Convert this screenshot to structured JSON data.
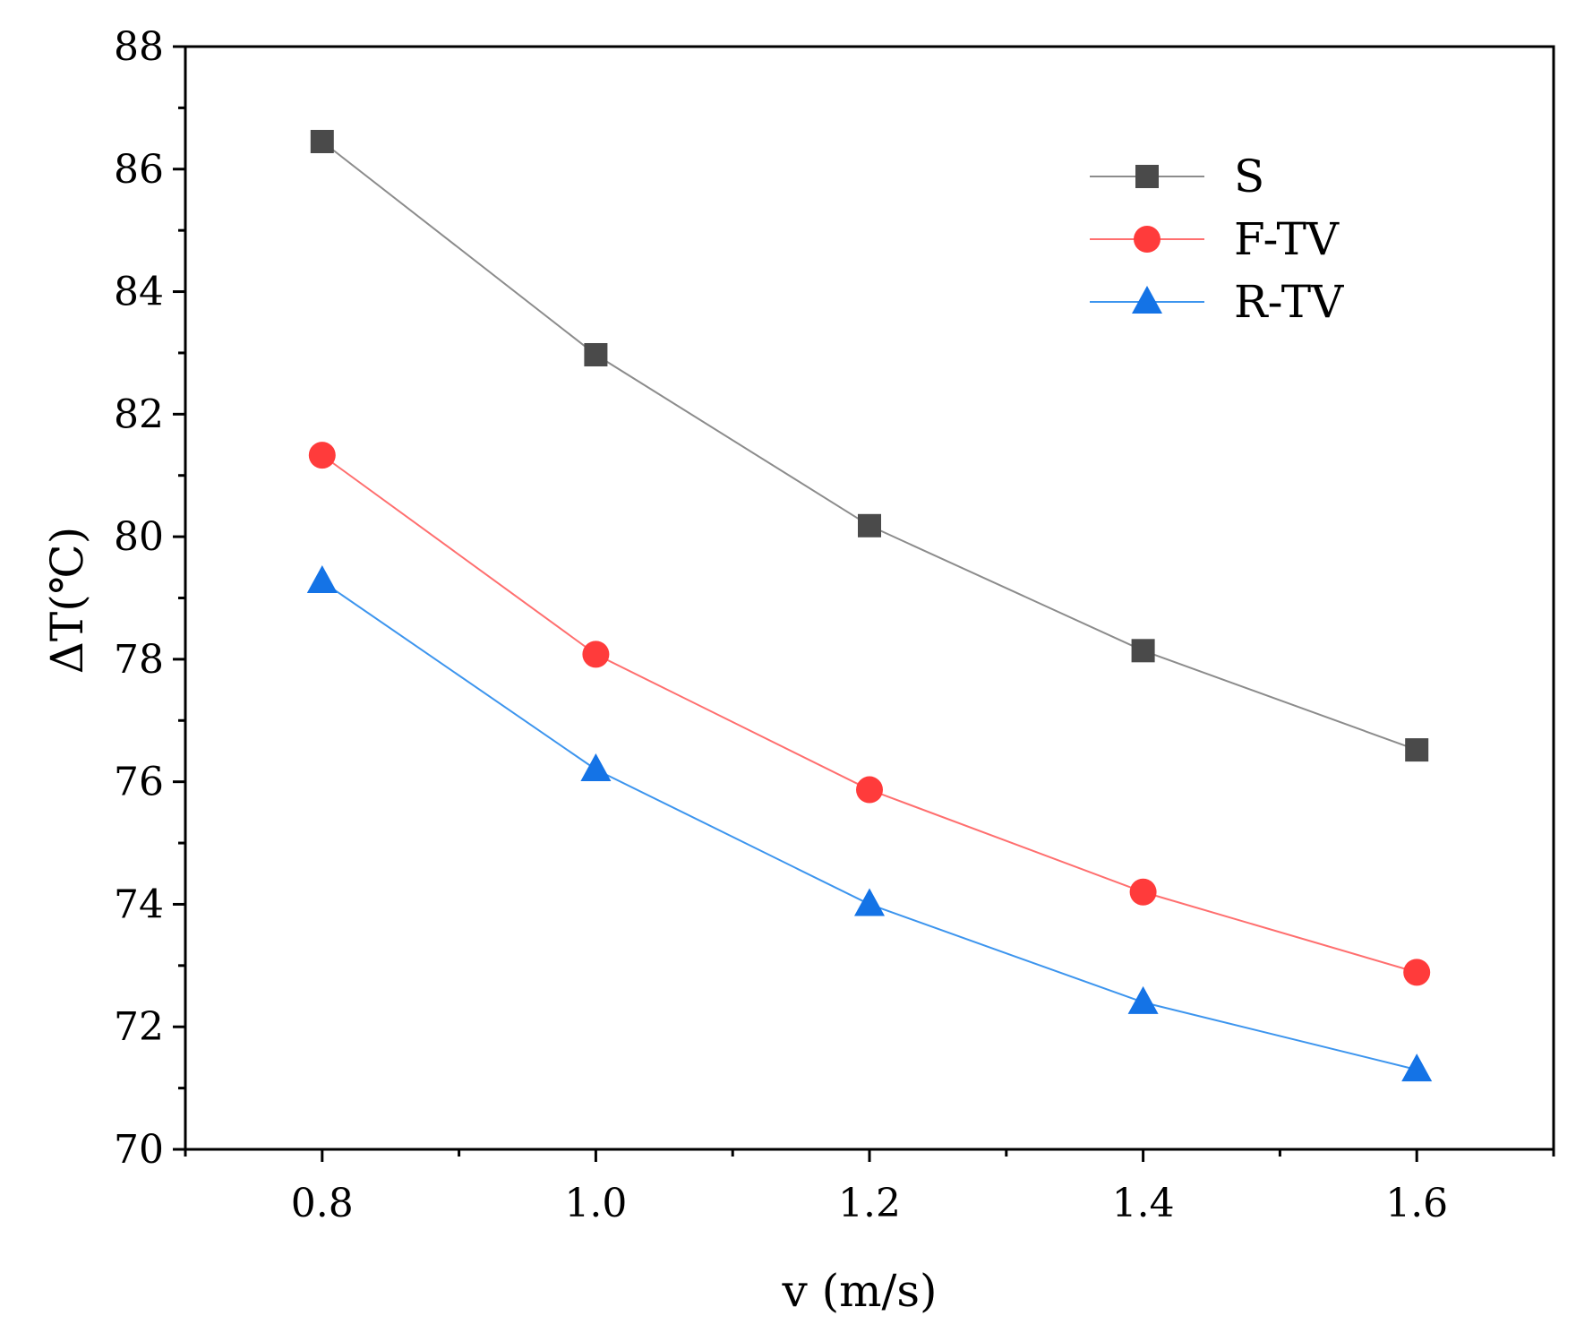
{
  "chart_data": {
    "type": "line",
    "title": "",
    "xlabel": "v (m/s)",
    "ylabel": "ΔT(℃)",
    "x": [
      0.8,
      1.0,
      1.2,
      1.4,
      1.6
    ],
    "xlim": [
      0.7,
      1.7
    ],
    "ylim": [
      70,
      88
    ],
    "xticks": [
      "0.8",
      "1.0",
      "1.2",
      "1.4",
      "1.6"
    ],
    "yticks": [
      "70",
      "72",
      "74",
      "76",
      "78",
      "80",
      "82",
      "84",
      "86",
      "88"
    ],
    "grid": false,
    "legend_position": "top-right",
    "series": [
      {
        "name": "S",
        "marker": "square",
        "color": "#4a4a4a",
        "line_color": "#8c8c8c",
        "values": [
          86.45,
          82.97,
          80.18,
          78.14,
          76.52
        ]
      },
      {
        "name": "F-TV",
        "marker": "circle",
        "color": "#ff3b3b",
        "line_color": "#ff6f6f",
        "values": [
          81.33,
          78.08,
          75.87,
          74.2,
          72.89
        ]
      },
      {
        "name": "R-TV",
        "marker": "triangle",
        "color": "#1473e6",
        "line_color": "#3d95ee",
        "values": [
          79.27,
          76.2,
          74.0,
          72.4,
          71.3
        ]
      }
    ]
  }
}
